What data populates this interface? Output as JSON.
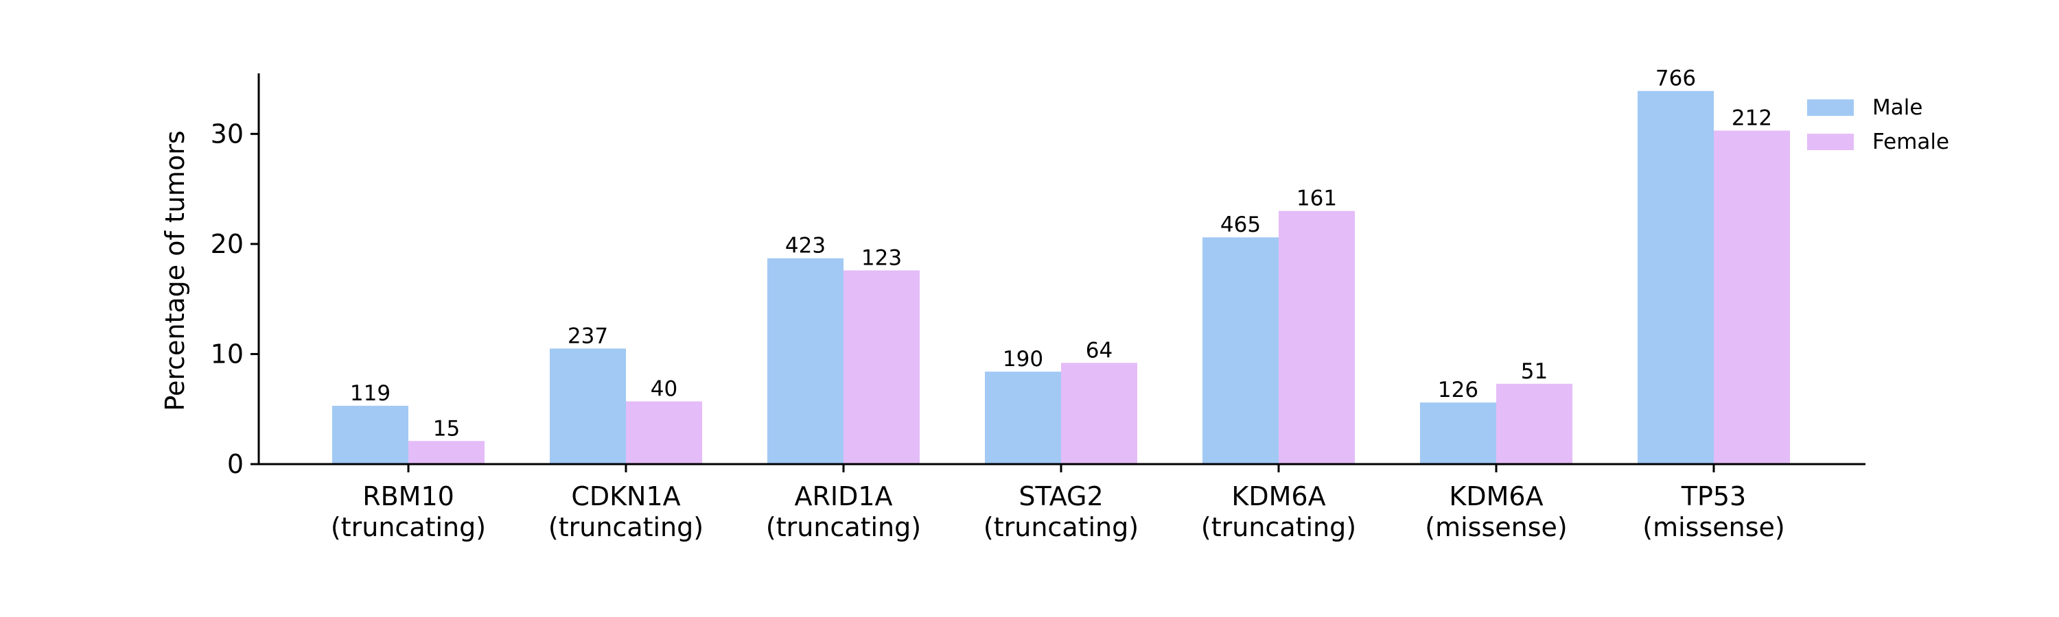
{
  "chart_data": {
    "type": "bar",
    "title": "",
    "xlabel": "",
    "ylabel": "Percentage of tumors",
    "ylim": [
      0,
      35.5
    ],
    "yticks": [
      0,
      10,
      20,
      30
    ],
    "grid": false,
    "legend_position": "top-right",
    "categories": [
      [
        "RBM10",
        "(truncating)"
      ],
      [
        "CDKN1A",
        "(truncating)"
      ],
      [
        "ARID1A",
        "(truncating)"
      ],
      [
        "STAG2",
        "(truncating)"
      ],
      [
        "KDM6A",
        "(truncating)"
      ],
      [
        "KDM6A",
        "(missense)"
      ],
      [
        "TP53",
        "(missense)"
      ]
    ],
    "series": [
      {
        "name": "Male",
        "color": "#a1c9f4",
        "values": [
          5.3,
          10.5,
          18.7,
          8.4,
          20.6,
          5.6,
          33.9
        ],
        "labels": [
          "119",
          "237",
          "423",
          "190",
          "465",
          "126",
          "766"
        ]
      },
      {
        "name": "Female",
        "color": "#e4bcf8",
        "values": [
          2.1,
          5.7,
          17.6,
          9.2,
          23.0,
          7.3,
          30.3
        ],
        "labels": [
          "15",
          "40",
          "123",
          "64",
          "161",
          "51",
          "212"
        ]
      }
    ]
  }
}
